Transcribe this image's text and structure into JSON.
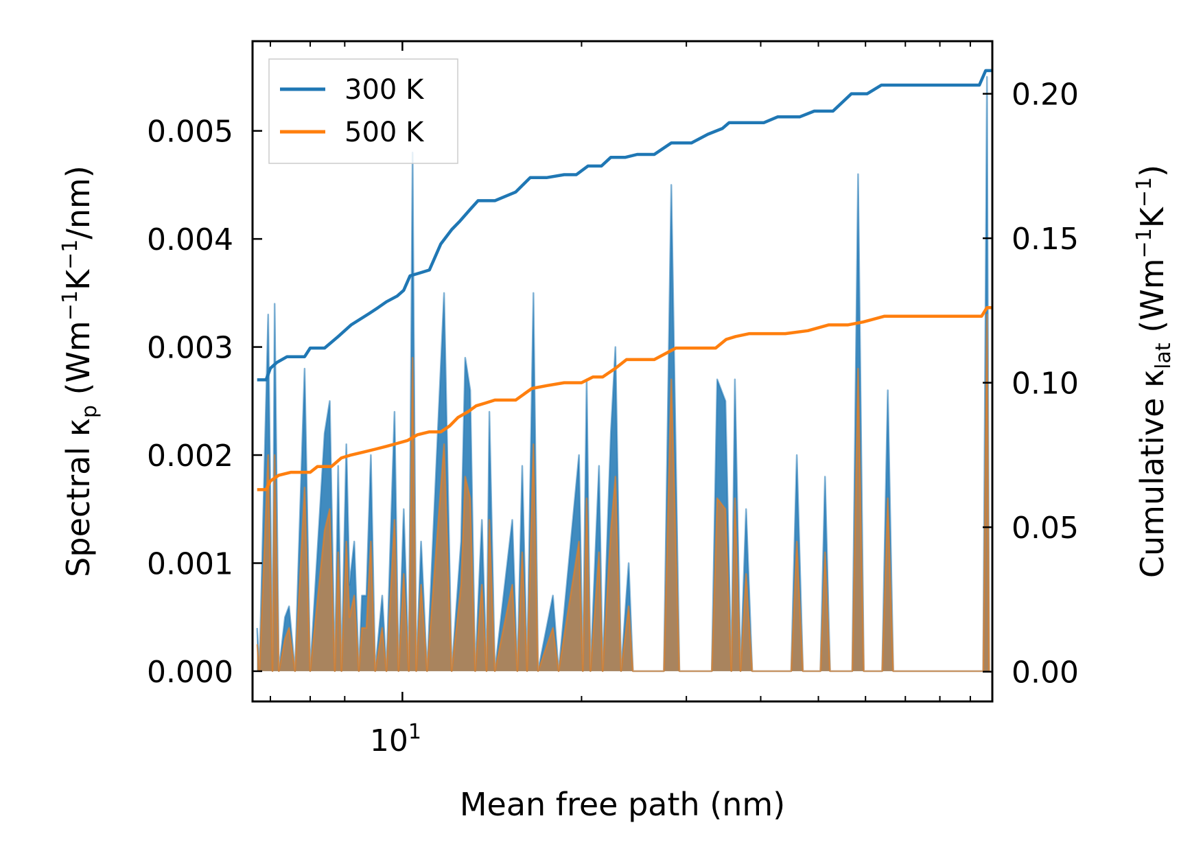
{
  "chart_data": {
    "type": "line",
    "xscale": "log",
    "xlabel": "Mean free path (nm)",
    "xlim": [
      5.6,
      98
    ],
    "x_tick_labels": [
      {
        "value": 10,
        "base": "10",
        "exp": "1"
      }
    ],
    "x_minor_ticks": [
      6,
      7,
      8,
      20,
      30,
      40,
      50,
      60,
      70,
      80,
      90
    ],
    "ylabel_left": {
      "pre": "Spectral κ",
      "sub": "p",
      "mid": " (Wm",
      "sup1": "−1",
      "k": "K",
      "sup2": "−1",
      "post": "/nm)"
    },
    "ylim_left": [
      -0.00028,
      0.00583
    ],
    "yticks_left": [
      "0.000",
      "0.001",
      "0.002",
      "0.003",
      "0.004",
      "0.005"
    ],
    "ylabel_right": {
      "pre": "Cumulative κ",
      "sub": "lat",
      "mid": " (Wm",
      "sup1": "−1",
      "k": "K",
      "sup2": "−1",
      "post": ")"
    },
    "ylim_right": [
      -0.0103,
      0.2182
    ],
    "yticks_right": [
      "0.00",
      "0.05",
      "0.10",
      "0.15",
      "0.20"
    ],
    "legend": {
      "position": "top-left"
    },
    "series": [
      {
        "name": "300 K",
        "color": "#1f77b4",
        "spectral": [
          [
            5.7,
            0.0004
          ],
          [
            5.75,
            0.0
          ],
          [
            5.95,
            0.0033
          ],
          [
            6.05,
            0.0
          ],
          [
            6.1,
            0.0034
          ],
          [
            6.2,
            0.0
          ],
          [
            6.35,
            0.0005
          ],
          [
            6.45,
            0.0006
          ],
          [
            6.6,
            0.0
          ],
          [
            6.85,
            0.0028
          ],
          [
            7.0,
            0.0
          ],
          [
            7.4,
            0.0022
          ],
          [
            7.55,
            0.0025
          ],
          [
            7.7,
            0.0
          ],
          [
            7.8,
            0.0019
          ],
          [
            7.9,
            0.0
          ],
          [
            8.05,
            0.0021
          ],
          [
            8.15,
            0.0008
          ],
          [
            8.3,
            0.0012
          ],
          [
            8.45,
            0.0
          ],
          [
            8.55,
            0.0007
          ],
          [
            8.7,
            0.0007
          ],
          [
            8.85,
            0.002
          ],
          [
            9.0,
            0.0
          ],
          [
            9.25,
            0.0007
          ],
          [
            9.4,
            0.0
          ],
          [
            9.7,
            0.0024
          ],
          [
            9.85,
            0.0
          ],
          [
            10.05,
            0.0015
          ],
          [
            10.25,
            0.0
          ],
          [
            10.4,
            0.0048
          ],
          [
            10.55,
            0.0
          ],
          [
            10.75,
            0.0012
          ],
          [
            11.0,
            0.0
          ],
          [
            11.75,
            0.0035
          ],
          [
            12.1,
            0.0
          ],
          [
            12.55,
            0.0012
          ],
          [
            12.75,
            0.0029
          ],
          [
            13.0,
            0.0026
          ],
          [
            13.25,
            0.0
          ],
          [
            13.6,
            0.0014
          ],
          [
            13.85,
            0.0
          ],
          [
            14.0,
            0.0024
          ],
          [
            14.3,
            0.0
          ],
          [
            15.3,
            0.0014
          ],
          [
            15.6,
            0.0
          ],
          [
            15.9,
            0.0019
          ],
          [
            16.2,
            0.0
          ],
          [
            16.6,
            0.0035
          ],
          [
            16.9,
            0.0
          ],
          [
            17.9,
            0.0007
          ],
          [
            18.3,
            0.0
          ],
          [
            19.8,
            0.002
          ],
          [
            20.1,
            0.0
          ],
          [
            20.4,
            0.0027
          ],
          [
            20.7,
            0.0
          ],
          [
            21.4,
            0.0019
          ],
          [
            21.7,
            0.0
          ],
          [
            22.4,
            0.0022
          ],
          [
            22.8,
            0.003
          ],
          [
            23.3,
            0.0
          ],
          [
            24.0,
            0.001
          ],
          [
            24.4,
            0.0
          ],
          [
            27.5,
            0.0
          ],
          [
            28.3,
            0.0045
          ],
          [
            29.2,
            0.0
          ],
          [
            33.1,
            0.0
          ],
          [
            33.8,
            0.0027
          ],
          [
            34.9,
            0.0025
          ],
          [
            35.7,
            0.0
          ],
          [
            36.2,
            0.0027
          ],
          [
            37.0,
            0.0
          ],
          [
            37.8,
            0.0015
          ],
          [
            38.7,
            0.0
          ],
          [
            45.0,
            0.0
          ],
          [
            46.0,
            0.002
          ],
          [
            47.1,
            0.0
          ],
          [
            50.4,
            0.0
          ],
          [
            51.3,
            0.0018
          ],
          [
            52.3,
            0.0
          ],
          [
            57.0,
            0.0
          ],
          [
            58.3,
            0.0046
          ],
          [
            59.6,
            0.0
          ],
          [
            64.0,
            0.0
          ],
          [
            65.4,
            0.0026
          ],
          [
            66.8,
            0.0
          ],
          [
            94.6,
            0.0
          ],
          [
            96.0,
            0.0055
          ],
          [
            96.8,
            0.0
          ]
        ],
        "cumulative": [
          [
            5.7,
            0.101
          ],
          [
            5.9,
            0.101
          ],
          [
            6.0,
            0.105
          ],
          [
            6.15,
            0.107
          ],
          [
            6.4,
            0.109
          ],
          [
            6.85,
            0.109
          ],
          [
            7.0,
            0.112
          ],
          [
            7.4,
            0.112
          ],
          [
            7.8,
            0.116
          ],
          [
            8.2,
            0.12
          ],
          [
            8.8,
            0.124
          ],
          [
            9.1,
            0.126
          ],
          [
            9.4,
            0.128
          ],
          [
            9.8,
            0.13
          ],
          [
            10.05,
            0.132
          ],
          [
            10.3,
            0.137
          ],
          [
            10.7,
            0.138
          ],
          [
            11.1,
            0.139
          ],
          [
            11.6,
            0.148
          ],
          [
            12.1,
            0.153
          ],
          [
            12.5,
            0.156
          ],
          [
            13.0,
            0.16
          ],
          [
            13.4,
            0.163
          ],
          [
            14.3,
            0.163
          ],
          [
            15.5,
            0.166
          ],
          [
            16.4,
            0.171
          ],
          [
            17.5,
            0.171
          ],
          [
            18.7,
            0.172
          ],
          [
            19.6,
            0.172
          ],
          [
            20.5,
            0.175
          ],
          [
            21.6,
            0.175
          ],
          [
            22.4,
            0.178
          ],
          [
            23.7,
            0.178
          ],
          [
            24.8,
            0.179
          ],
          [
            26.5,
            0.179
          ],
          [
            28.3,
            0.183
          ],
          [
            30.6,
            0.183
          ],
          [
            32.6,
            0.186
          ],
          [
            34.5,
            0.188
          ],
          [
            35.4,
            0.19
          ],
          [
            37.2,
            0.19
          ],
          [
            40.5,
            0.19
          ],
          [
            42.7,
            0.192
          ],
          [
            46.5,
            0.192
          ],
          [
            49.2,
            0.194
          ],
          [
            52.9,
            0.194
          ],
          [
            56.8,
            0.2
          ],
          [
            60.4,
            0.2
          ],
          [
            63.8,
            0.203
          ],
          [
            72.3,
            0.203
          ],
          [
            80.0,
            0.203
          ],
          [
            93.2,
            0.203
          ],
          [
            95.5,
            0.208
          ],
          [
            98.0,
            0.208
          ]
        ]
      },
      {
        "name": "500 K",
        "color": "#ff7f0e",
        "spectral": [
          [
            5.7,
            0.00025
          ],
          [
            5.75,
            0.0
          ],
          [
            5.95,
            0.002
          ],
          [
            6.05,
            0.0
          ],
          [
            6.1,
            0.002
          ],
          [
            6.2,
            0.0
          ],
          [
            6.35,
            0.0003
          ],
          [
            6.45,
            0.0004
          ],
          [
            6.6,
            0.0
          ],
          [
            6.85,
            0.0017
          ],
          [
            7.0,
            0.0
          ],
          [
            7.4,
            0.0013
          ],
          [
            7.55,
            0.0015
          ],
          [
            7.7,
            0.0
          ],
          [
            7.8,
            0.0011
          ],
          [
            7.9,
            0.0
          ],
          [
            8.05,
            0.0012
          ],
          [
            8.15,
            0.0005
          ],
          [
            8.3,
            0.0007
          ],
          [
            8.45,
            0.0
          ],
          [
            8.55,
            0.0004
          ],
          [
            8.7,
            0.0004
          ],
          [
            8.85,
            0.0012
          ],
          [
            9.0,
            0.0
          ],
          [
            9.25,
            0.0004
          ],
          [
            9.4,
            0.0
          ],
          [
            9.7,
            0.0014
          ],
          [
            9.85,
            0.0
          ],
          [
            10.05,
            0.0009
          ],
          [
            10.25,
            0.0
          ],
          [
            10.4,
            0.0029
          ],
          [
            10.55,
            0.0
          ],
          [
            10.75,
            0.0008
          ],
          [
            11.0,
            0.0
          ],
          [
            11.75,
            0.0021
          ],
          [
            12.1,
            0.0
          ],
          [
            12.55,
            0.0008
          ],
          [
            12.75,
            0.0018
          ],
          [
            13.0,
            0.0016
          ],
          [
            13.25,
            0.0
          ],
          [
            13.6,
            0.0008
          ],
          [
            13.85,
            0.0
          ],
          [
            14.0,
            0.0014
          ],
          [
            14.3,
            0.0
          ],
          [
            15.3,
            0.0008
          ],
          [
            15.6,
            0.0
          ],
          [
            15.9,
            0.0011
          ],
          [
            16.2,
            0.0
          ],
          [
            16.6,
            0.0021
          ],
          [
            16.9,
            0.0
          ],
          [
            17.9,
            0.0004
          ],
          [
            18.3,
            0.0
          ],
          [
            19.8,
            0.0012
          ],
          [
            20.1,
            0.0
          ],
          [
            20.4,
            0.0016
          ],
          [
            20.7,
            0.0
          ],
          [
            21.4,
            0.0011
          ],
          [
            21.7,
            0.0
          ],
          [
            22.4,
            0.0013
          ],
          [
            22.8,
            0.0018
          ],
          [
            23.3,
            0.0
          ],
          [
            24.0,
            0.0006
          ],
          [
            24.4,
            0.0
          ],
          [
            27.5,
            0.0
          ],
          [
            28.3,
            0.0027
          ],
          [
            29.2,
            0.0
          ],
          [
            33.1,
            0.0
          ],
          [
            33.8,
            0.0016
          ],
          [
            34.9,
            0.0015
          ],
          [
            35.7,
            0.0
          ],
          [
            36.2,
            0.0016
          ],
          [
            37.0,
            0.0
          ],
          [
            37.8,
            0.0009
          ],
          [
            38.7,
            0.0
          ],
          [
            45.0,
            0.0
          ],
          [
            46.0,
            0.0012
          ],
          [
            47.1,
            0.0
          ],
          [
            50.4,
            0.0
          ],
          [
            51.3,
            0.0011
          ],
          [
            52.3,
            0.0
          ],
          [
            57.0,
            0.0
          ],
          [
            58.3,
            0.0028
          ],
          [
            59.6,
            0.0
          ],
          [
            64.0,
            0.0
          ],
          [
            65.4,
            0.0016
          ],
          [
            66.8,
            0.0
          ],
          [
            94.6,
            0.0
          ],
          [
            96.0,
            0.0033
          ],
          [
            96.8,
            0.0
          ]
        ],
        "cumulative": [
          [
            5.7,
            0.063
          ],
          [
            5.9,
            0.063
          ],
          [
            6.0,
            0.066
          ],
          [
            6.2,
            0.068
          ],
          [
            6.5,
            0.069
          ],
          [
            7.0,
            0.069
          ],
          [
            7.2,
            0.071
          ],
          [
            7.6,
            0.071
          ],
          [
            7.9,
            0.074
          ],
          [
            8.2,
            0.075
          ],
          [
            8.6,
            0.076
          ],
          [
            9.0,
            0.077
          ],
          [
            9.4,
            0.078
          ],
          [
            9.8,
            0.079
          ],
          [
            10.2,
            0.08
          ],
          [
            10.6,
            0.082
          ],
          [
            11.1,
            0.083
          ],
          [
            11.6,
            0.083
          ],
          [
            12.0,
            0.085
          ],
          [
            12.4,
            0.088
          ],
          [
            12.9,
            0.09
          ],
          [
            13.3,
            0.092
          ],
          [
            13.8,
            0.093
          ],
          [
            14.3,
            0.094
          ],
          [
            15.5,
            0.094
          ],
          [
            16.5,
            0.098
          ],
          [
            17.5,
            0.099
          ],
          [
            18.7,
            0.1
          ],
          [
            20.0,
            0.1
          ],
          [
            20.9,
            0.102
          ],
          [
            21.7,
            0.102
          ],
          [
            22.8,
            0.105
          ],
          [
            23.8,
            0.108
          ],
          [
            25.0,
            0.108
          ],
          [
            26.5,
            0.108
          ],
          [
            28.8,
            0.112
          ],
          [
            31.0,
            0.112
          ],
          [
            33.6,
            0.112
          ],
          [
            35.0,
            0.115
          ],
          [
            36.3,
            0.116
          ],
          [
            38.3,
            0.117
          ],
          [
            41.0,
            0.117
          ],
          [
            44.0,
            0.117
          ],
          [
            48.0,
            0.118
          ],
          [
            52.0,
            0.12
          ],
          [
            56.0,
            0.12
          ],
          [
            59.4,
            0.121
          ],
          [
            64.5,
            0.123
          ],
          [
            70.0,
            0.123
          ],
          [
            80.0,
            0.123
          ],
          [
            94.0,
            0.123
          ],
          [
            96.0,
            0.126
          ],
          [
            98.0,
            0.126
          ]
        ]
      }
    ]
  }
}
